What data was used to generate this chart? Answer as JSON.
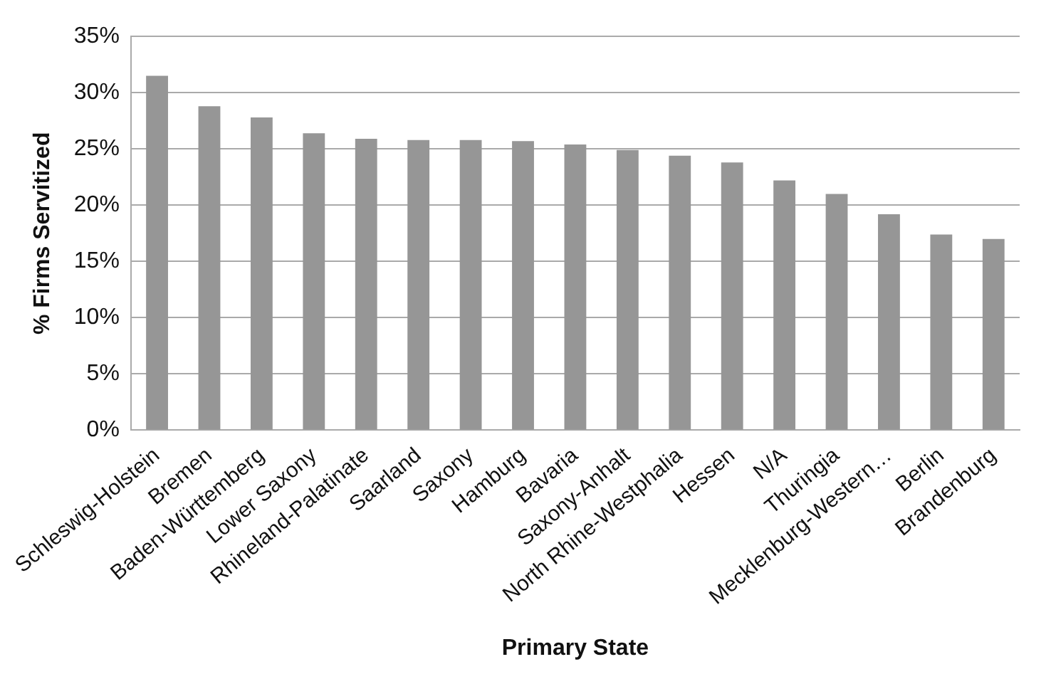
{
  "chart_data": {
    "type": "bar",
    "xlabel": "Primary State",
    "ylabel": "% Firms Servitized",
    "categories": [
      "Schleswig-Holstein",
      "Bremen",
      "Baden-Württemberg",
      "Lower Saxony",
      "Rhineland-Palatinate",
      "Saarland",
      "Saxony",
      "Hamburg",
      "Bavaria",
      "Saxony-Anhalt",
      "North Rhine-Westphalia",
      "Hessen",
      "N/A",
      "Thuringia",
      "Mecklenburg-Western…",
      "Berlin",
      "Brandenburg"
    ],
    "values": [
      31.5,
      28.8,
      27.8,
      26.4,
      25.9,
      25.8,
      25.8,
      25.7,
      25.4,
      24.9,
      24.4,
      23.8,
      22.2,
      21.0,
      19.2,
      17.4,
      17.0
    ],
    "color": "#969696",
    "ylim": [
      0,
      35
    ],
    "yticks": [
      {
        "value": 0,
        "label": "0%"
      },
      {
        "value": 5,
        "label": "5%"
      },
      {
        "value": 10,
        "label": "10%"
      },
      {
        "value": 15,
        "label": "15%"
      },
      {
        "value": 20,
        "label": "20%"
      },
      {
        "value": 25,
        "label": "25%"
      },
      {
        "value": 30,
        "label": "30%"
      },
      {
        "value": 35,
        "label": "35%"
      }
    ],
    "grid": "y",
    "legend": false
  }
}
